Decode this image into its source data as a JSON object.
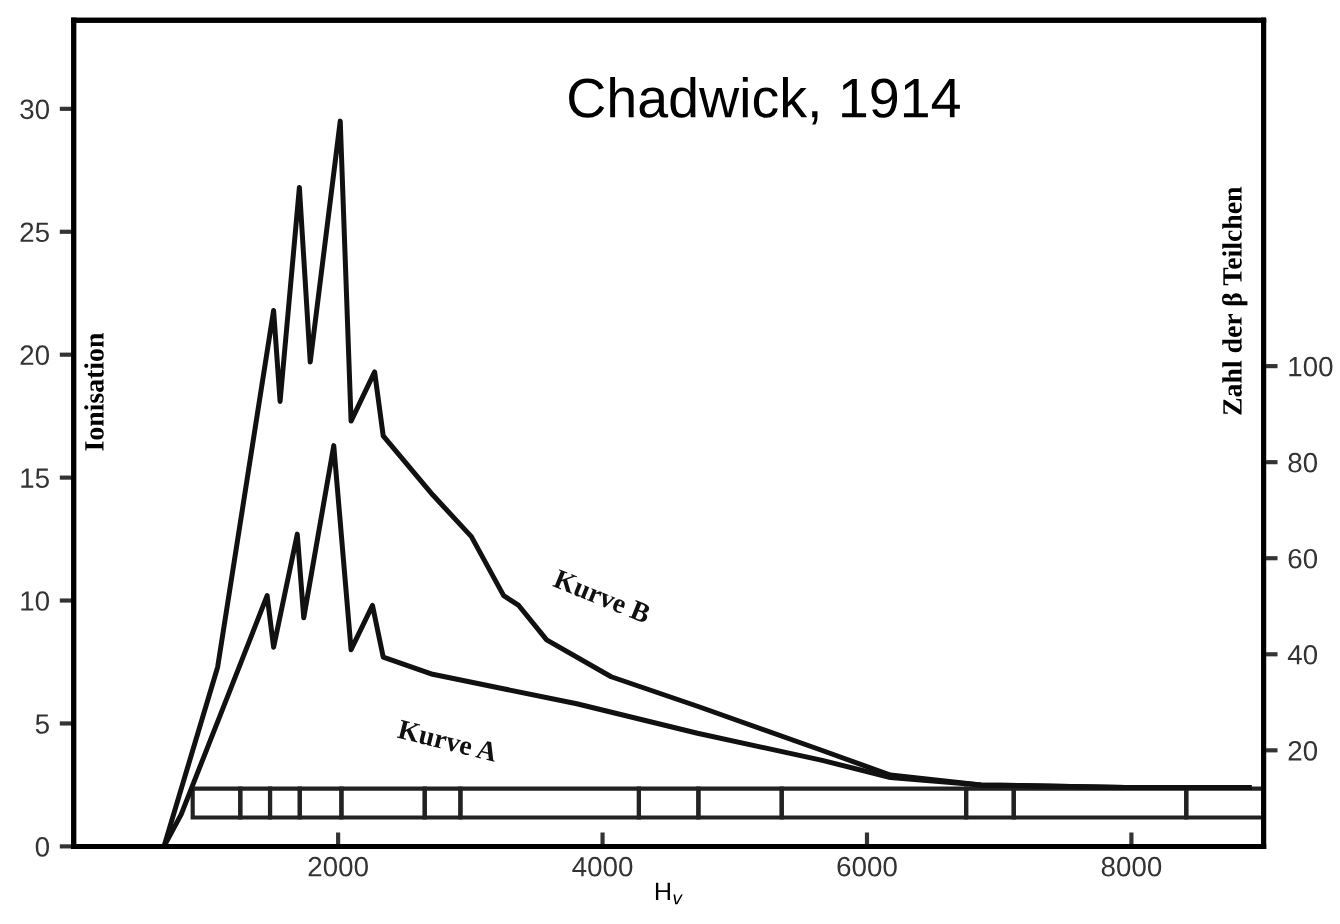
{
  "chart_data": {
    "type": "line",
    "xlabel": "H$_{v}$",
    "ylabel": "Ionisation",
    "y2label": "Zahl der β Teilchen",
    "annotations": [
      "Chadwick, 1914"
    ],
    "series": [
      {
        "name": "Kurve B",
        "color": "#111111",
        "x": [
          683,
          1089,
          1512,
          1561,
          1707,
          1789,
          2016,
          2098,
          2276,
          2341,
          2715,
          3008,
          3252,
          3366,
          3577,
          4065,
          4718,
          5662,
          6177,
          6863,
          7959,
          8890
        ],
        "values": [
          0,
          7.3,
          21.8,
          18.1,
          26.8,
          19.7,
          29.5,
          17.3,
          19.3,
          16.7,
          14.3,
          12.6,
          10.2,
          9.8,
          8.4,
          6.9,
          5.7,
          3.9,
          2.9,
          2.5,
          2.4,
          2.4
        ]
      },
      {
        "name": "Kurve A",
        "color": "#111111",
        "x": [
          683,
          813,
          1252,
          1463,
          1512,
          1691,
          1740,
          1967,
          2098,
          2260,
          2341,
          2715,
          3805,
          4718,
          5662,
          6177,
          6863,
          7959,
          8890
        ],
        "values": [
          0,
          1.3,
          7.3,
          10.2,
          8.1,
          12.7,
          9.3,
          16.3,
          8.0,
          9.8,
          7.7,
          7.0,
          5.8,
          4.6,
          3.5,
          2.8,
          2.5,
          2.4,
          2.4
        ]
      }
    ],
    "xlim": [
      0,
      9000
    ],
    "xticks": [
      2000,
      4000,
      6000,
      8000
    ],
    "ylim": [
      0,
      33.6
    ],
    "yticks": [
      0,
      5,
      10,
      15,
      20,
      25,
      30
    ],
    "y2lim": [
      0,
      172
    ],
    "y2ticks": [
      20,
      40,
      60,
      80,
      100
    ],
    "grid": false,
    "legend": false,
    "marker": "none",
    "line_style": "solid"
  }
}
